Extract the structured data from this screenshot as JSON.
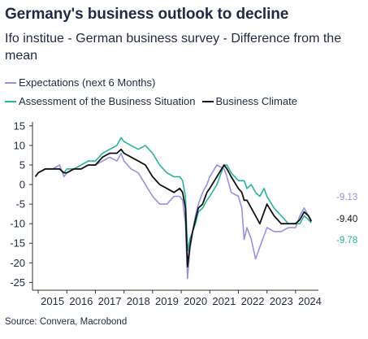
{
  "title": "Germany's business outlook to decline",
  "subtitle": "Ifo institue - German business survey - Difference from the mean",
  "source": "Source: Convera, Macrobond",
  "chart_data": {
    "type": "line",
    "title": "Germany's business outlook to decline",
    "subtitle": "Ifo institue - German business survey - Difference from the mean",
    "xlabel": "",
    "ylabel": "",
    "x_ticks": [
      "2015",
      "2016",
      "2017",
      "2018",
      "2019",
      "2020",
      "2021",
      "2022",
      "2023",
      "2024"
    ],
    "xlim": [
      2014.8,
      2024.8
    ],
    "y_ticks": [
      15,
      10,
      5,
      0,
      -5,
      -10,
      -15,
      -20,
      -25
    ],
    "ylim": [
      -27,
      16
    ],
    "grid": false,
    "legend_position": "top-left",
    "series": [
      {
        "name": "Expectations (next 6 Months)",
        "color": "#9a8fe0",
        "end_label": "-9.13",
        "x": [
          2014.9,
          2015.0,
          2015.25,
          2015.5,
          2015.75,
          2015.9,
          2016.0,
          2016.25,
          2016.5,
          2016.75,
          2017.0,
          2017.25,
          2017.5,
          2017.75,
          2017.9,
          2018.0,
          2018.25,
          2018.5,
          2018.75,
          2019.0,
          2019.25,
          2019.5,
          2019.75,
          2019.95,
          2020.05,
          2020.15,
          2020.22,
          2020.3,
          2020.4,
          2020.5,
          2020.6,
          2020.75,
          2020.9,
          2021.0,
          2021.25,
          2021.5,
          2021.6,
          2021.75,
          2022.0,
          2022.12,
          2022.2,
          2022.3,
          2022.45,
          2022.6,
          2022.75,
          2022.9,
          2023.0,
          2023.25,
          2023.5,
          2023.75,
          2024.0,
          2024.15,
          2024.3,
          2024.45,
          2024.55
        ],
        "y": [
          2,
          3,
          4,
          4,
          5,
          2,
          3,
          4,
          4,
          5,
          5,
          6,
          7,
          6,
          8,
          6,
          4,
          3,
          0,
          -3,
          -5,
          -5,
          -3,
          -3,
          -4,
          -10,
          -24,
          -17,
          -12,
          -8,
          -5,
          -2,
          0,
          2,
          5,
          4,
          2,
          -2,
          -3,
          -6,
          -14,
          -11,
          -14,
          -19,
          -16,
          -13,
          -11,
          -12,
          -12,
          -11,
          -11,
          -8,
          -6,
          -8,
          -9.13
        ]
      },
      {
        "name": "Assessment of the Business Situation",
        "color": "#26b497",
        "end_label": "-9.78",
        "x": [
          2014.9,
          2015.0,
          2015.25,
          2015.5,
          2015.75,
          2015.9,
          2016.0,
          2016.25,
          2016.5,
          2016.75,
          2017.0,
          2017.25,
          2017.5,
          2017.75,
          2017.9,
          2018.0,
          2018.25,
          2018.5,
          2018.75,
          2019.0,
          2019.25,
          2019.5,
          2019.75,
          2019.95,
          2020.05,
          2020.15,
          2020.22,
          2020.3,
          2020.4,
          2020.5,
          2020.6,
          2020.75,
          2020.9,
          2021.0,
          2021.25,
          2021.5,
          2021.6,
          2021.75,
          2022.0,
          2022.12,
          2022.2,
          2022.3,
          2022.45,
          2022.6,
          2022.75,
          2022.9,
          2023.0,
          2023.25,
          2023.5,
          2023.75,
          2024.0,
          2024.15,
          2024.3,
          2024.45,
          2024.55
        ],
        "y": [
          2,
          3,
          4,
          4,
          4,
          3,
          4,
          4,
          5,
          6,
          6,
          8,
          9,
          10,
          12,
          11,
          10,
          9,
          10,
          8,
          5,
          3,
          2,
          2,
          1,
          -3,
          -17,
          -14,
          -12,
          -10,
          -7,
          -6,
          -4,
          -3,
          0,
          5,
          5,
          3,
          1,
          1,
          1,
          -1,
          0,
          -2,
          -3,
          -1,
          -3,
          -6,
          -8,
          -10,
          -10,
          -10,
          -8,
          -9,
          -9.78
        ]
      },
      {
        "name": "Business Climate",
        "color": "#111111",
        "end_label": "-9.40",
        "x": [
          2014.9,
          2015.0,
          2015.25,
          2015.5,
          2015.75,
          2015.9,
          2016.0,
          2016.25,
          2016.5,
          2016.75,
          2017.0,
          2017.25,
          2017.5,
          2017.75,
          2017.9,
          2018.0,
          2018.25,
          2018.5,
          2018.75,
          2019.0,
          2019.25,
          2019.5,
          2019.75,
          2019.95,
          2020.05,
          2020.15,
          2020.22,
          2020.3,
          2020.4,
          2020.5,
          2020.6,
          2020.75,
          2020.9,
          2021.0,
          2021.25,
          2021.5,
          2021.6,
          2021.75,
          2022.0,
          2022.12,
          2022.2,
          2022.3,
          2022.45,
          2022.6,
          2022.75,
          2022.9,
          2023.0,
          2023.25,
          2023.5,
          2023.75,
          2024.0,
          2024.15,
          2024.3,
          2024.45,
          2024.55
        ],
        "y": [
          2,
          3,
          4,
          4,
          4,
          3,
          3,
          4,
          4,
          5,
          5,
          7,
          8,
          8,
          9,
          8,
          7,
          6,
          5,
          2,
          0,
          -1,
          -2,
          -1,
          -2,
          -6,
          -21,
          -16,
          -12,
          -9,
          -6,
          -5,
          -2,
          -1,
          2,
          5,
          4,
          2,
          -1,
          -2,
          -4,
          -4,
          -6,
          -8,
          -10,
          -7,
          -5,
          -8,
          -10,
          -10,
          -10,
          -9,
          -7,
          -8,
          -9.4
        ]
      }
    ]
  }
}
